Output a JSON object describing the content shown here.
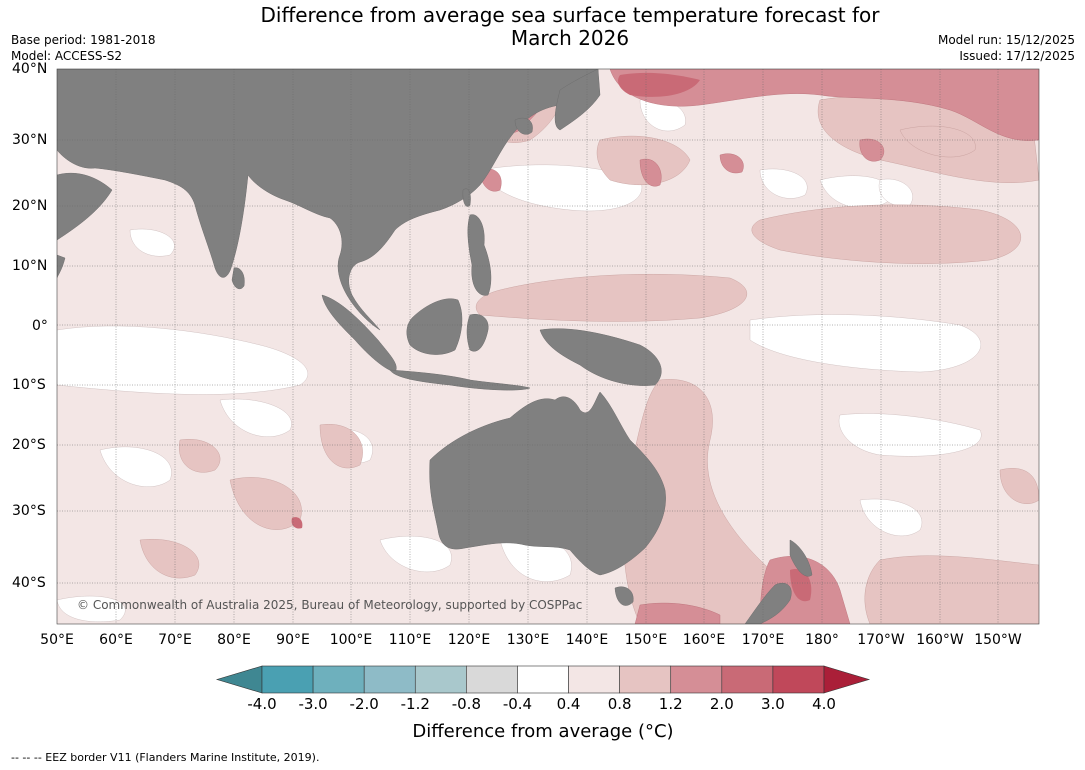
{
  "title_line1": "Difference from average sea surface temperature forecast for",
  "title_line2": "March 2026",
  "base_period": "Base period: 1981-2018",
  "model": "Model: ACCESS-S2",
  "model_run": "Model run: 15/12/2025",
  "issued": "Issued: 17/12/2025",
  "copyright": "© Commonwealth of Australia 2025, Bureau of Meteorology, supported by COSPPac",
  "lat_labels": [
    "40°N",
    "30°N",
    "20°N",
    "10°N",
    "0°",
    "10°S",
    "20°S",
    "30°S",
    "40°S"
  ],
  "lon_labels": [
    "50°E",
    "60°E",
    "70°E",
    "80°E",
    "90°E",
    "100°E",
    "110°E",
    "120°E",
    "130°E",
    "140°E",
    "150°E",
    "160°E",
    "170°E",
    "180°",
    "170°W",
    "160°W",
    "150°W"
  ],
  "colorbar": {
    "title": "Difference from average (°C)",
    "tick_labels": [
      "-4.0",
      "-3.0",
      "-2.0",
      "-1.2",
      "-0.8",
      "-0.4",
      "0.4",
      "0.8",
      "1.2",
      "2.0",
      "3.0",
      "4.0"
    ],
    "colors": [
      "#3f8792",
      "#4aa0b2",
      "#6eb0bd",
      "#8ebbc7",
      "#a9c8cc",
      "#d9d9d9",
      "#ffffff",
      "#f3e6e5",
      "#e6c4c2",
      "#d58e96",
      "#c96a76",
      "#c0485a",
      "#aa1f38"
    ]
  },
  "legend_colors": {
    "land": "#808080",
    "ocean_neutral": "#ffffff",
    "warm_light": "#f3e6e5",
    "warm_medium": "#e6c4c2",
    "warm_strong": "#d58e96",
    "warm_very_strong": "#c96a76"
  },
  "footer": "--  --  -- EEZ border V11 (Flanders Marine Institute, 2019)."
}
